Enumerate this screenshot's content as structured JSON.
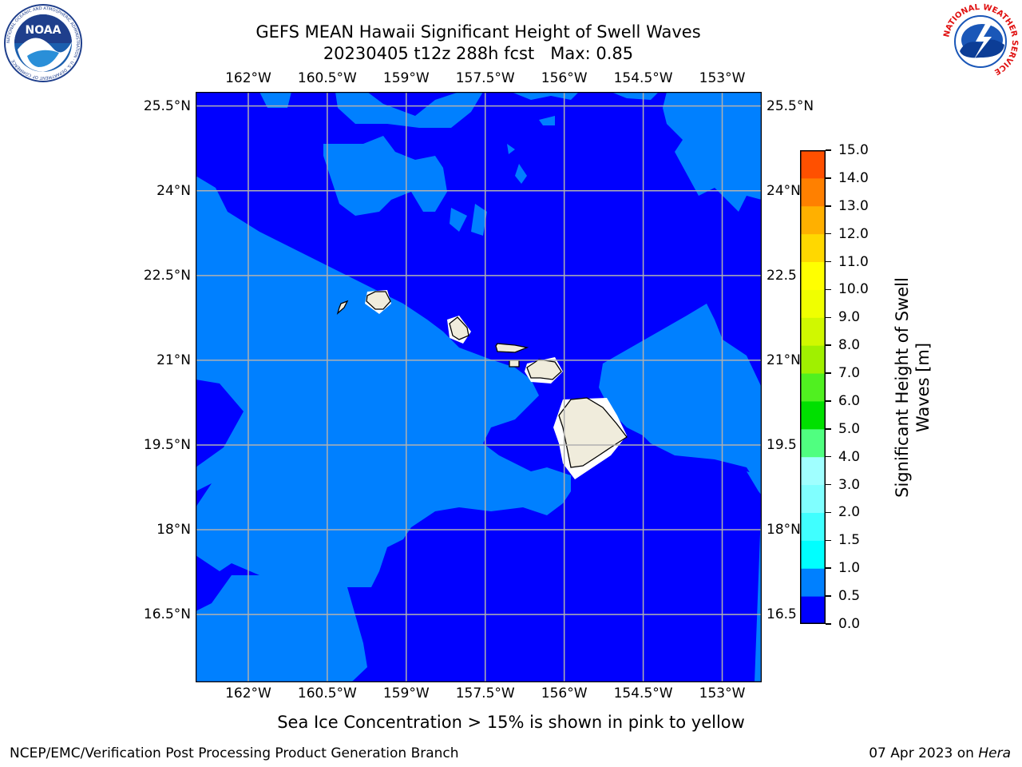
{
  "header": {
    "title_line1": "GEFS MEAN Hawaii Significant Height of Swell Waves",
    "title_line2": "20230405 t12z 288h fcst   Max: 0.85"
  },
  "logos": {
    "left": "noaa-logo",
    "left_ring_text": "NATIONAL OCEANIC AND ATMOSPHERIC ADMINISTRATION · U.S. DEPARTMENT OF COMMERCE",
    "left_center_text": "NOAA",
    "right": "nws-logo",
    "right_ring_text": "NATIONAL WEATHER SERVICE"
  },
  "map": {
    "lon_ticks": [
      "162°W",
      "160.5°W",
      "159°W",
      "157.5°W",
      "156°W",
      "154.5°W",
      "153°W"
    ],
    "lat_ticks_left": [
      "25.5°N",
      "24°N",
      "22.5°N",
      "21°N",
      "19.5°N",
      "18°N",
      "16.5°N"
    ],
    "lat_ticks_right": [
      "25.5°N",
      "24°N",
      "22.5",
      "21°N",
      "19.5",
      "18°N",
      "16.5"
    ],
    "lon_values": [
      -162,
      -160.5,
      -159,
      -157.5,
      -156,
      -154.5,
      -153
    ],
    "lat_values": [
      25.5,
      24,
      22.5,
      21,
      19.5,
      18,
      16.5
    ],
    "lon_range": [
      -163.0,
      -152.25
    ],
    "lat_range": [
      15.3,
      25.75
    ],
    "grid": true,
    "field_colors": {
      "band_0_0_5": "#0000ff",
      "band_0_5_1_0": "#0080ff",
      "land": "#f0ecdc"
    },
    "note": "Sea Ice Concentration > 15% is shown in pink to yellow"
  },
  "colorbar": {
    "label": "Significant Height of Swell Waves [m]",
    "label_line1": "Significant Height of Swell",
    "label_line2": "Waves [m]",
    "ticks": [
      "15.0",
      "14.0",
      "13.0",
      "12.0",
      "11.0",
      "10.0",
      "9.0",
      "8.0",
      "7.0",
      "6.0",
      "5.0",
      "4.0",
      "3.0",
      "2.0",
      "1.5",
      "1.0",
      "0.5",
      "0.0"
    ],
    "levels": [
      0.0,
      0.5,
      1.0,
      1.5,
      2.0,
      3.0,
      4.0,
      5.0,
      6.0,
      7.0,
      8.0,
      9.0,
      10.0,
      11.0,
      12.0,
      13.0,
      14.0,
      15.0
    ],
    "colors": [
      "#0000ff",
      "#0080ff",
      "#00ffff",
      "#40ffff",
      "#80ffff",
      "#a0ffff",
      "#50ff80",
      "#00e000",
      "#50f020",
      "#a0f000",
      "#d0f800",
      "#f0ff00",
      "#ffff00",
      "#ffd800",
      "#ffb000",
      "#ff8000",
      "#ff5000",
      "#ff2000",
      "#ff0000"
    ]
  },
  "footer": {
    "left": "NCEP/EMC/Verification Post Processing Product Generation Branch",
    "right_date": "07 Apr 2023 on ",
    "right_host": "Hera"
  }
}
